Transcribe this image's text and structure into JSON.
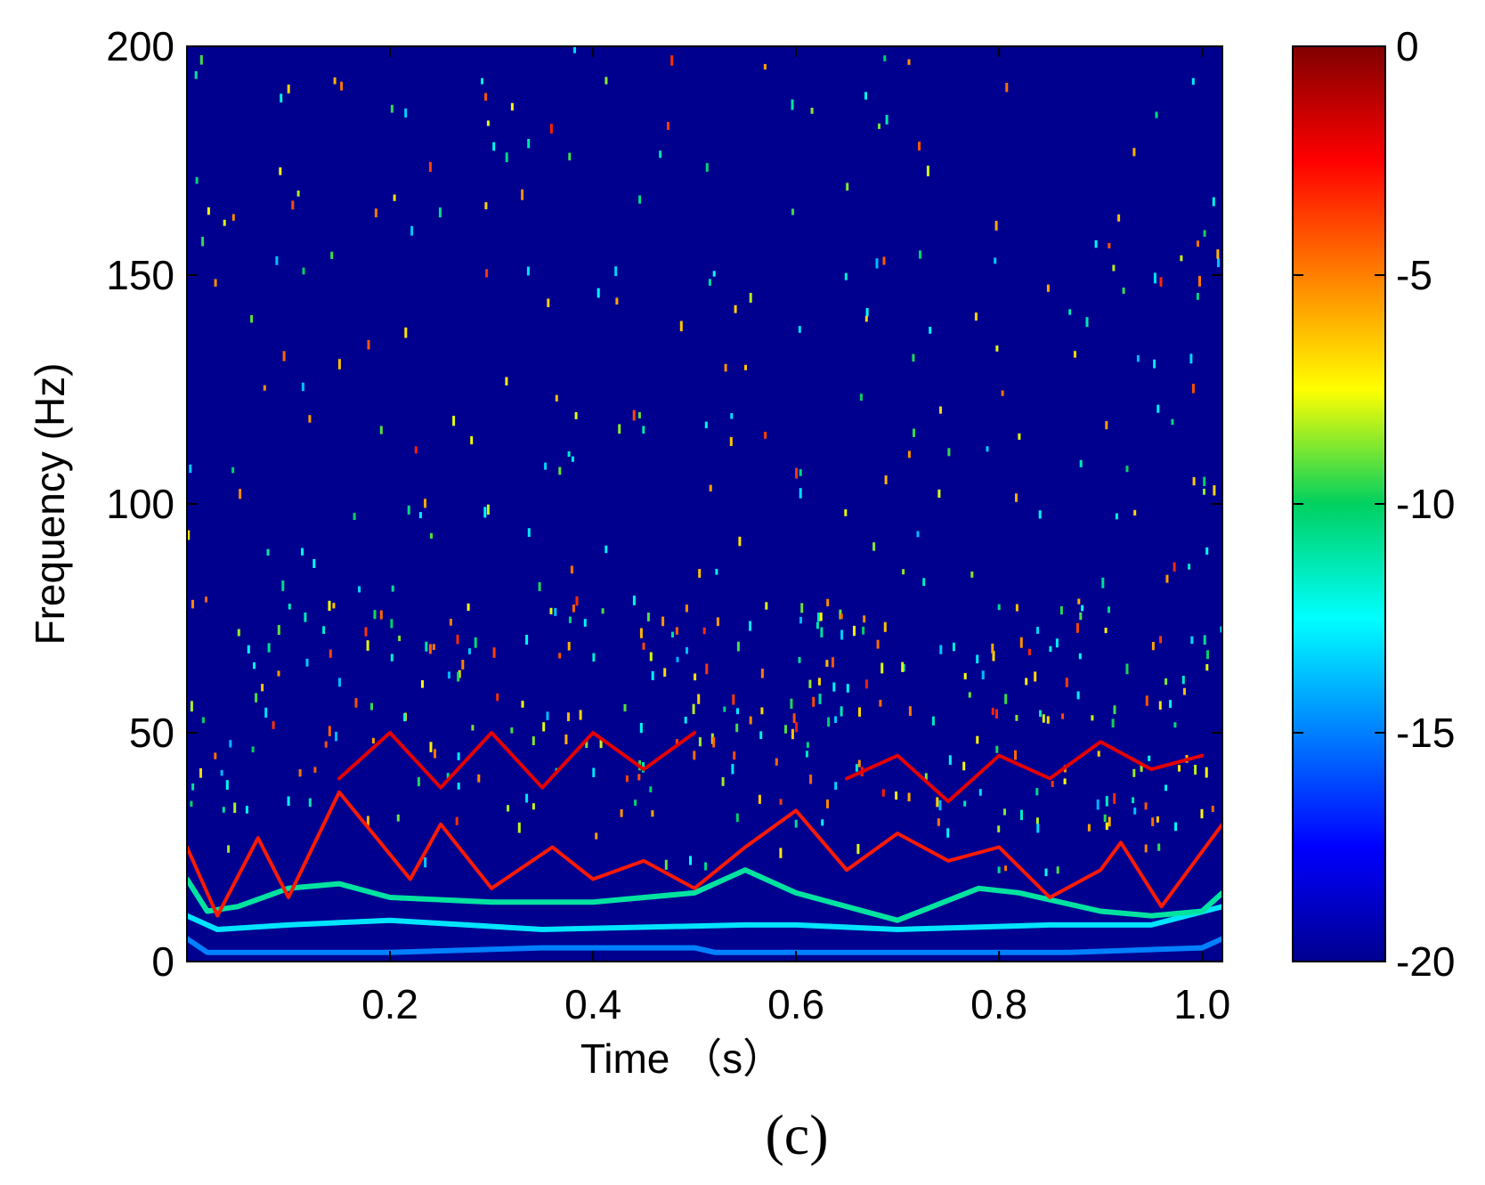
{
  "panel_label": "(c)",
  "chart_data": {
    "type": "heatmap",
    "title": "",
    "xlabel": "Time （s）",
    "ylabel": "Frequency (Hz)",
    "xlim": [
      0,
      1.02
    ],
    "ylim": [
      0,
      200
    ],
    "x_ticks": [
      0.2,
      0.4,
      0.6,
      0.8,
      1.0
    ],
    "x_tick_labels": [
      "0.2",
      "0.4",
      "0.6",
      "0.8",
      "1.0"
    ],
    "y_ticks": [
      0,
      50,
      100,
      150,
      200
    ],
    "y_tick_labels": [
      "0",
      "50",
      "100",
      "150",
      "200"
    ],
    "colorbar": {
      "colormap": "jet",
      "range": [
        -20,
        0
      ],
      "ticks": [
        0,
        -5,
        -10,
        -15,
        -20
      ],
      "tick_labels": [
        "0",
        "-5",
        "-10",
        "-15",
        "-20"
      ]
    },
    "background_level": -20,
    "series": [
      {
        "level": -15,
        "x": [
          0,
          0.02,
          0.05,
          0.2,
          0.35,
          0.5,
          0.52,
          0.75,
          0.87,
          1.0,
          1.02
        ],
        "y": [
          5,
          2,
          2,
          2,
          3,
          3,
          2,
          2,
          2,
          3,
          5
        ]
      },
      {
        "level": -13,
        "x": [
          0,
          0.03,
          0.1,
          0.2,
          0.35,
          0.55,
          0.6,
          0.7,
          0.85,
          0.95,
          1.02
        ],
        "y": [
          10,
          7,
          8,
          9,
          7,
          8,
          8,
          7,
          8,
          8,
          12
        ]
      },
      {
        "level": -11,
        "x": [
          0,
          0.02,
          0.05,
          0.1,
          0.15,
          0.2,
          0.3,
          0.4,
          0.5,
          0.55,
          0.6,
          0.7,
          0.78,
          0.82,
          0.9,
          0.95,
          1.0,
          1.02
        ],
        "y": [
          18,
          11,
          12,
          16,
          17,
          14,
          13,
          13,
          15,
          20,
          15,
          9,
          16,
          15,
          11,
          10,
          11,
          15
        ]
      },
      {
        "level": -3,
        "x": [
          0,
          0.03,
          0.07,
          0.1,
          0.15,
          0.22,
          0.25,
          0.3,
          0.36,
          0.4,
          0.45,
          0.5,
          0.55,
          0.6,
          0.65,
          0.7,
          0.75,
          0.8,
          0.85,
          0.9,
          0.92,
          0.96,
          1.02
        ],
        "y": [
          25,
          10,
          27,
          14,
          37,
          18,
          30,
          16,
          25,
          18,
          22,
          16,
          25,
          33,
          20,
          28,
          22,
          25,
          14,
          20,
          26,
          12,
          30
        ]
      },
      {
        "level": -2,
        "x": [
          0.15,
          0.2,
          0.25,
          0.3,
          0.35,
          0.4,
          0.45,
          0.5
        ],
        "y": [
          40,
          50,
          38,
          50,
          38,
          50,
          42,
          50
        ]
      },
      {
        "level": -2,
        "x": [
          0.65,
          0.7,
          0.75,
          0.8,
          0.85,
          0.9,
          0.95,
          1.0
        ],
        "y": [
          40,
          45,
          35,
          45,
          40,
          48,
          42,
          45
        ]
      }
    ]
  }
}
